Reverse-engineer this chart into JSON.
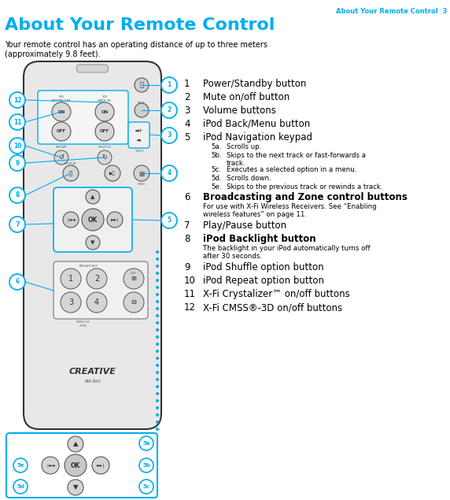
{
  "page_header": "About Your Remote Control  3",
  "title": "About Your Remote Control",
  "intro": "Your remote control has an operating distance of up to three meters\n(approximately 9.8 feet).",
  "title_color": "#00AEEF",
  "header_color": "#00AEEF",
  "text_color": "#000000",
  "bg_color": "#ffffff",
  "callout_color": "#00AEEF",
  "items": [
    {
      "num": "1",
      "text": "Power/Standby button",
      "bold": false
    },
    {
      "num": "2",
      "text": "Mute on/off button",
      "bold": false
    },
    {
      "num": "3",
      "text": "Volume buttons",
      "bold": false
    },
    {
      "num": "4",
      "text": "iPod Back/Menu button",
      "bold": false
    },
    {
      "num": "5",
      "text": "iPod Navigation keypad",
      "bold": false,
      "sub": [
        {
          "num": "5a.",
          "text": "Scrolls up."
        },
        {
          "num": "5b.",
          "text": "Skips to the next track or fast-forwards a\ntrack."
        },
        {
          "num": "5c.",
          "text": "Executes a selected option in a menu."
        },
        {
          "num": "5d.",
          "text": "Scrolls down."
        },
        {
          "num": "5e.",
          "text": "Skips to the previous track or rewinds a track."
        }
      ]
    },
    {
      "num": "6",
      "text": "Broadcasting and Zone control buttons",
      "bold": true,
      "sub_plain": "For use with X-Fi Wireless Receivers. See “Enabling\nwireless features” on page 11."
    },
    {
      "num": "7",
      "text": "Play/Pause button",
      "bold": false
    },
    {
      "num": "8",
      "text": "iPod Backlight button",
      "bold": true,
      "sub_plain": "The backlight in your iPod automatically turns off\nafter 30 seconds."
    },
    {
      "num": "9",
      "text": "iPod Shuffle option button",
      "bold": false
    },
    {
      "num": "10",
      "text": "iPod Repeat option button",
      "bold": false
    },
    {
      "num": "11",
      "text": "X-Fi Crystalizer™ on/off buttons",
      "bold": false
    },
    {
      "num": "12",
      "text": "X-Fi CMSS®-3D on/off buttons",
      "bold": false
    }
  ]
}
